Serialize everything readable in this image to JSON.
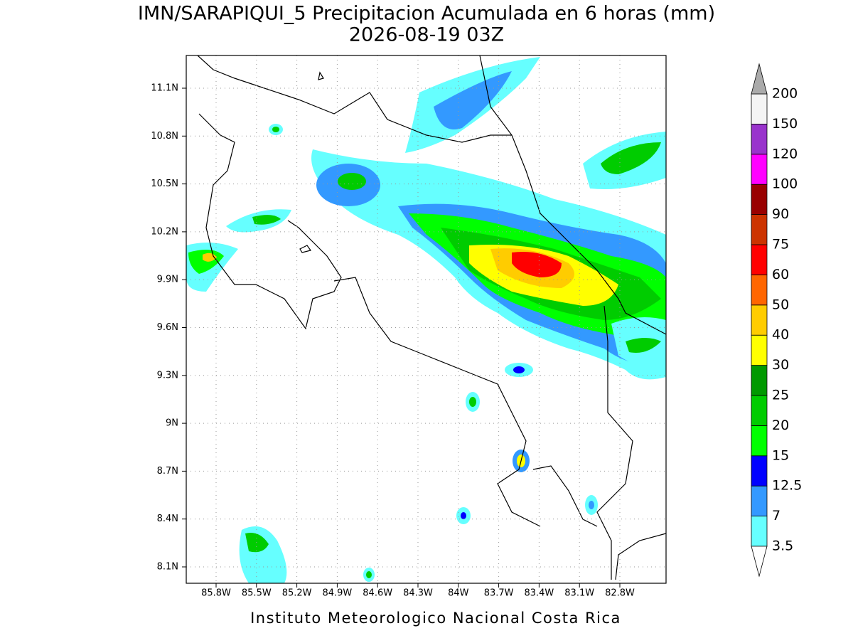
{
  "header": {
    "title": "IMN/SARAPIQUI_5 Precipitacion Acumulada en 6 horas (mm)",
    "subtitle": "2026-08-19 03Z"
  },
  "map": {
    "lon_ticks": [
      "85.8W",
      "85.5W",
      "85.2W",
      "84.9W",
      "84.6W",
      "84.3W",
      "84W",
      "83.7W",
      "83.4W",
      "83.1W",
      "82.8W"
    ],
    "lat_ticks": [
      "11.1N",
      "10.8N",
      "10.5N",
      "10.2N",
      "9.9N",
      "9.6N",
      "9.3N",
      "9N",
      "8.7N",
      "8.4N",
      "8.1N"
    ],
    "grid": true
  },
  "colorbar": {
    "labels": [
      "3.5",
      "7",
      "12.5",
      "15",
      "20",
      "25",
      "30",
      "40",
      "50",
      "60",
      "75",
      "90",
      "100",
      "120",
      "150",
      "200"
    ],
    "colors": [
      "#66ffff",
      "#3399ff",
      "#0000ff",
      "#00ff00",
      "#00cc00",
      "#009900",
      "#ffff00",
      "#ffcc00",
      "#ff6600",
      "#ff0000",
      "#cc3300",
      "#990000",
      "#ff00ff",
      "#9933cc",
      "#f4f4f4"
    ],
    "under_color": "#ffffff",
    "over_color": "#aaaaaa"
  },
  "footer": "Instituto Meteorologico Nacional Costa Rica"
}
